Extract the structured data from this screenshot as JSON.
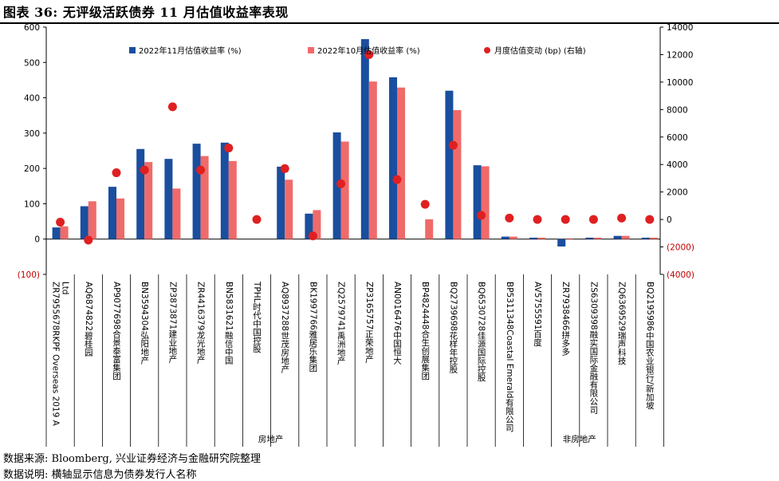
{
  "title": "图表 36: 无评级活跃债券 11 月估值收益率表现",
  "footer": {
    "source": "数据来源: Bloomberg, 兴业证券经济与金融研究院整理",
    "note": "数据说明: 横轴显示信息为债券发行人名称"
  },
  "colors": {
    "nov": "#1a4e9e",
    "oct": "#f06a6a",
    "change": "#e02020"
  },
  "chart_data": {
    "type": "bar",
    "categories": [
      "ZR7955678RKPF Overseas 2019 A Ltd",
      "AQ6874822碧桂园",
      "AP9077698合景泰富集团",
      "BN3594304弘阳地产",
      "ZP3873871建业地产",
      "ZR4416379龙光地产",
      "BN5831621融信中国",
      "TPHL时代中国控股",
      "AQ8937288世茂房地产",
      "BK1997766雅居乐集团",
      "ZQ2579741禹洲地产",
      "ZP3165757正荣地产",
      "AN0016476中国恒大",
      "BP4824448合生创展集团",
      "BQ2739698花样年控股",
      "BQ6530728佳源国际控股",
      "BP5311348Coastal Emerald有限公司",
      "AV5755591百度",
      "ZR7938466拼多多",
      "ZS6309398融实国际金融有限公司",
      "ZQ6369529瑞声科技",
      "BQ2195986中国农业银行/新加坡"
    ],
    "series": [
      {
        "name": "2022年11月估值收益率 (%)",
        "type": "bar",
        "values": [
          33,
          93,
          148,
          255,
          227,
          270,
          273,
          null,
          205,
          72,
          302,
          566,
          458,
          null,
          420,
          209,
          7,
          4,
          -21,
          4,
          9,
          4
        ]
      },
      {
        "name": "2022年10月估值收益率 (%)",
        "type": "bar",
        "values": [
          36,
          107,
          115,
          218,
          143,
          235,
          221,
          null,
          168,
          82,
          276,
          446,
          429,
          56,
          365,
          206,
          7,
          4,
          2,
          4,
          9,
          4
        ]
      },
      {
        "name": "月度估值变动 (bp) (右轴)",
        "type": "scatter",
        "axis": "right",
        "values": [
          -200,
          -1500,
          3400,
          3600,
          8200,
          3600,
          5200,
          0,
          3700,
          -1200,
          2600,
          12000,
          2900,
          1100,
          5400,
          300,
          100,
          0,
          0,
          0,
          100,
          0
        ]
      }
    ],
    "y_left": {
      "ylim": [
        -100,
        600
      ],
      "ticks": [
        -100,
        0,
        100,
        200,
        300,
        400,
        500,
        600
      ],
      "tick_labels": [
        "(100)",
        "0",
        "100",
        "200",
        "300",
        "400",
        "500",
        "600"
      ]
    },
    "y_right": {
      "ylim": [
        -4000,
        14000
      ],
      "ticks": [
        -4000,
        -2000,
        0,
        2000,
        4000,
        6000,
        8000,
        10000,
        12000,
        14000
      ],
      "tick_labels": [
        "(4000)",
        "(2000)",
        "0",
        "2000",
        "4000",
        "6000",
        "8000",
        "10000",
        "12000",
        "14000"
      ]
    },
    "groups": [
      {
        "label": "房地产",
        "start": 0,
        "end": 15
      },
      {
        "label": "非房地产",
        "start": 16,
        "end": 21
      }
    ],
    "legend_position": "top",
    "grid": false
  }
}
